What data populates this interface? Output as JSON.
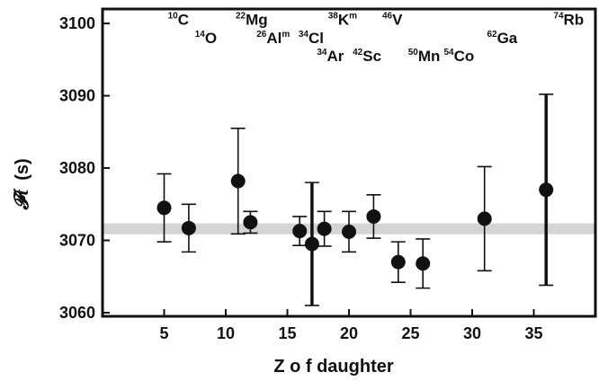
{
  "chart_data": {
    "type": "scatter",
    "title": "",
    "xlabel": "Z o f daughter",
    "ylabel_symbol": "𝓕t",
    "ylabel_unit": "(s)",
    "xlim": [
      0,
      40
    ],
    "ylim": [
      3059.5,
      3102
    ],
    "xticks": [
      5,
      10,
      15,
      20,
      25,
      30,
      35
    ],
    "yticks": [
      3060,
      3070,
      3080,
      3090,
      3100
    ],
    "average_band": {
      "center": 3071.6,
      "half_width": 0.75
    },
    "points": [
      {
        "x": 5,
        "y": 3074.5,
        "err": 4.7,
        "bold": false
      },
      {
        "x": 7,
        "y": 3071.7,
        "err": 3.3,
        "bold": false
      },
      {
        "x": 11,
        "y": 3078.2,
        "err": 7.3,
        "bold": false
      },
      {
        "x": 12,
        "y": 3072.5,
        "err": 1.5,
        "bold": false
      },
      {
        "x": 16,
        "y": 3071.3,
        "err": 2.0,
        "bold": false
      },
      {
        "x": 17,
        "y": 3069.5,
        "err": 8.5,
        "bold": true
      },
      {
        "x": 18,
        "y": 3071.6,
        "err": 2.4,
        "bold": false
      },
      {
        "x": 20,
        "y": 3071.2,
        "err": 2.8,
        "bold": false
      },
      {
        "x": 22,
        "y": 3073.3,
        "err": 3.0,
        "bold": false
      },
      {
        "x": 24,
        "y": 3067.0,
        "err": 2.8,
        "bold": false
      },
      {
        "x": 26,
        "y": 3066.8,
        "err": 3.4,
        "bold": false
      },
      {
        "x": 31,
        "y": 3073.0,
        "err": 7.2,
        "bold": false
      },
      {
        "x": 36,
        "y": 3077.0,
        "err": 13.2,
        "bold": true
      }
    ],
    "isotope_labels": [
      {
        "mass": "10",
        "symbol": "C",
        "meta": "",
        "x": 5.3,
        "y": 3099.8
      },
      {
        "mass": "14",
        "symbol": "O",
        "meta": "",
        "x": 7.5,
        "y": 3097.3
      },
      {
        "mass": "22",
        "symbol": "Mg",
        "meta": "",
        "x": 10.8,
        "y": 3099.8
      },
      {
        "mass": "26",
        "symbol": "Al",
        "meta": "m",
        "x": 12.5,
        "y": 3097.3
      },
      {
        "mass": "34",
        "symbol": "Cl",
        "meta": "",
        "x": 15.9,
        "y": 3097.3
      },
      {
        "mass": "34",
        "symbol": "Ar",
        "meta": "",
        "x": 17.4,
        "y": 3094.8
      },
      {
        "mass": "38",
        "symbol": "K",
        "meta": "m",
        "x": 18.3,
        "y": 3099.8
      },
      {
        "mass": "42",
        "symbol": "Sc",
        "meta": "",
        "x": 20.3,
        "y": 3094.8
      },
      {
        "mass": "46",
        "symbol": "V",
        "meta": "",
        "x": 22.7,
        "y": 3099.8
      },
      {
        "mass": "50",
        "symbol": "Mn",
        "meta": "",
        "x": 24.8,
        "y": 3094.8
      },
      {
        "mass": "54",
        "symbol": "Co",
        "meta": "",
        "x": 27.7,
        "y": 3094.8
      },
      {
        "mass": "62",
        "symbol": "Ga",
        "meta": "",
        "x": 31.2,
        "y": 3097.3
      },
      {
        "mass": "74",
        "symbol": "Rb",
        "meta": "",
        "x": 36.6,
        "y": 3099.8
      }
    ]
  },
  "colors": {
    "axis": "#111111",
    "band": "#d4d4d4",
    "marker": "#111111",
    "background": "#ffffff"
  }
}
